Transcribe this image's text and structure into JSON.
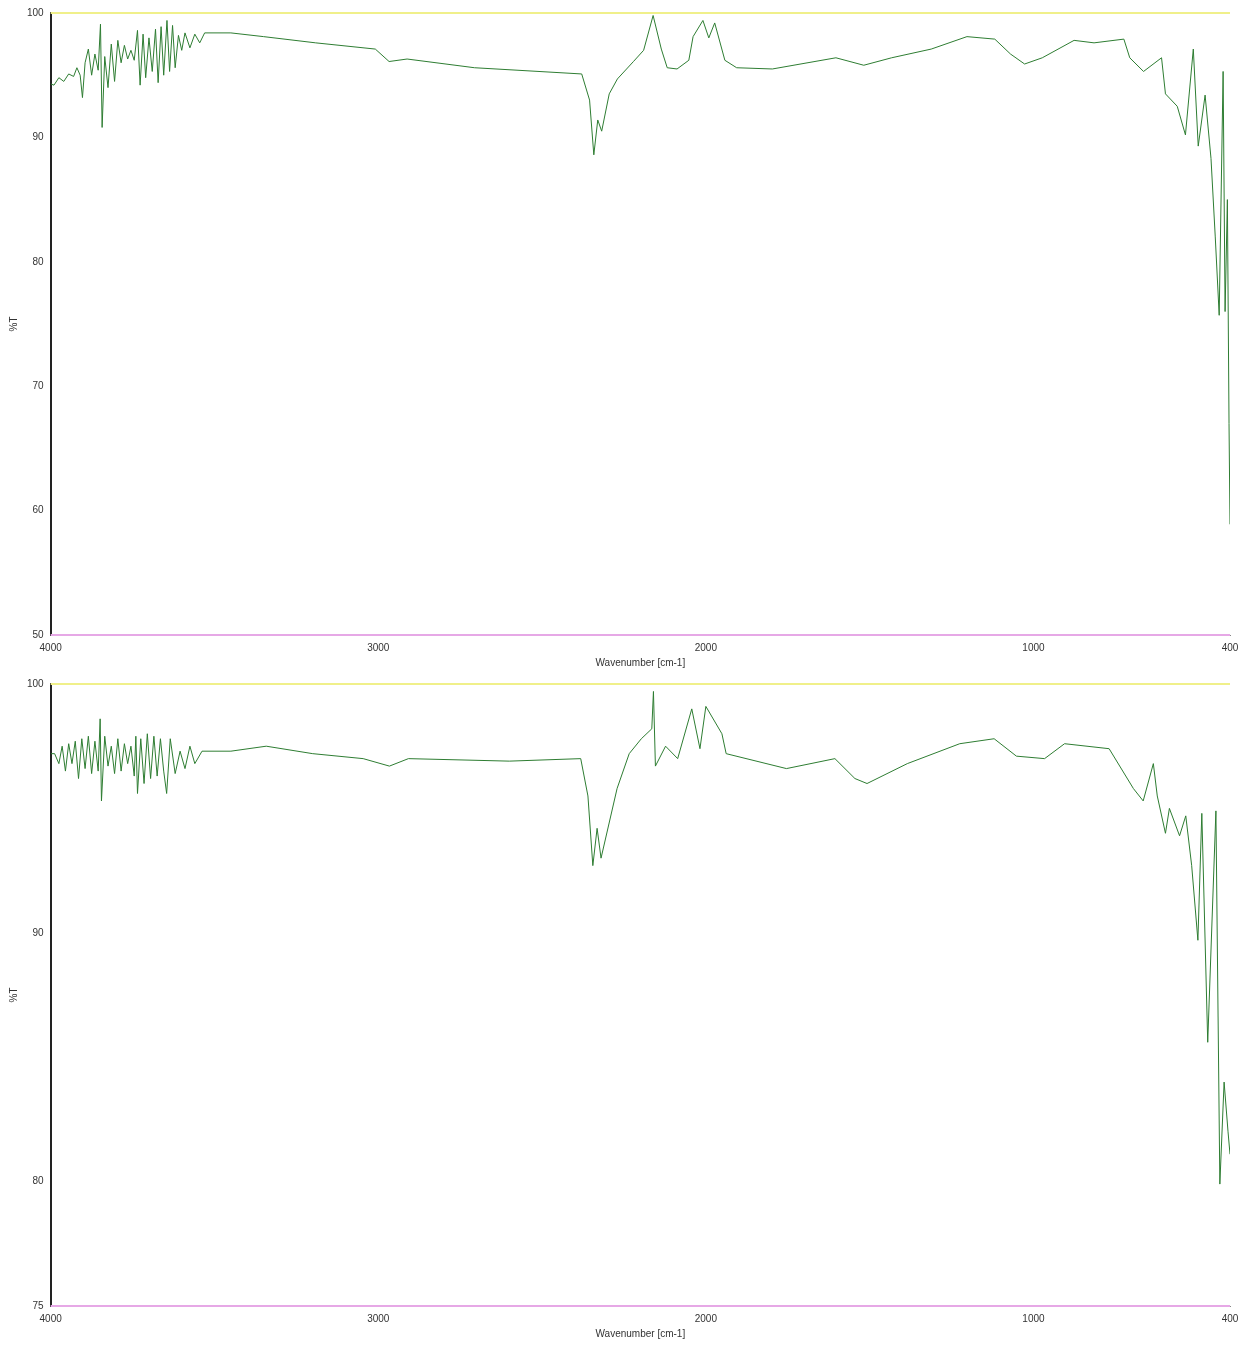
{
  "chart_data": [
    {
      "type": "line",
      "xlabel": "Wavenumber [cm-1]",
      "ylabel": "%T",
      "xlim": [
        4000,
        400
      ],
      "xticks": [
        4000,
        3000,
        2000,
        1000,
        400
      ],
      "ylim": [
        50,
        100
      ],
      "yticks": [
        50,
        60,
        70,
        80,
        90,
        100
      ],
      "grid": false,
      "legend": false,
      "marker": "none",
      "line_style": "solid",
      "ref_lines": [
        {
          "axis": "y",
          "value": 100,
          "color": "#f0f08a"
        },
        {
          "axis": "y",
          "value": 50,
          "color": "#e6a8e6"
        }
      ],
      "series": [
        {
          "color": "#2e7d32",
          "x": [
            4000,
            3990,
            3975,
            3960,
            3945,
            3930,
            3920,
            3910,
            3903,
            3895,
            3885,
            3875,
            3865,
            3855,
            3848,
            3843,
            3835,
            3825,
            3815,
            3805,
            3795,
            3785,
            3775,
            3765,
            3755,
            3745,
            3735,
            3727,
            3718,
            3710,
            3700,
            3690,
            3680,
            3672,
            3663,
            3655,
            3645,
            3637,
            3628,
            3620,
            3610,
            3600,
            3590,
            3575,
            3560,
            3545,
            3530,
            3450,
            3350,
            3191,
            3009,
            2967,
            2912,
            2706,
            2379,
            2355,
            2342,
            2330,
            2318,
            2295,
            2270,
            2221,
            2190,
            2161,
            2136,
            2118,
            2088,
            2052,
            2039,
            2009,
            1991,
            1973,
            1942,
            1906,
            1797,
            1603,
            1518,
            1433,
            1312,
            1203,
            1118,
            1070,
            1027,
            973,
            876,
            815,
            724,
            706,
            664,
            609,
            597,
            561,
            536,
            512,
            497,
            476,
            458,
            445,
            433,
            421,
            415,
            408,
            403,
            400
          ],
          "values": [
            94.3,
            94.2,
            94.8,
            94.5,
            95.1,
            94.9,
            95.6,
            95.0,
            93.2,
            96.0,
            97.1,
            95.0,
            96.7,
            95.4,
            99.1,
            90.8,
            96.5,
            94.0,
            97.5,
            94.5,
            97.8,
            96.0,
            97.4,
            96.3,
            97.0,
            96.2,
            98.6,
            94.2,
            98.3,
            94.8,
            98.0,
            95.3,
            98.7,
            94.4,
            98.9,
            95.0,
            99.4,
            95.3,
            99.0,
            95.6,
            98.2,
            97.0,
            98.4,
            97.2,
            98.3,
            97.6,
            98.4,
            98.4,
            98.1,
            97.6,
            97.1,
            96.1,
            96.3,
            95.6,
            95.1,
            93.0,
            88.6,
            91.4,
            90.5,
            93.5,
            94.7,
            96.1,
            97.0,
            99.8,
            97.1,
            95.6,
            95.5,
            96.2,
            98.1,
            99.4,
            98.0,
            99.2,
            96.2,
            95.6,
            95.5,
            96.4,
            95.8,
            96.4,
            97.1,
            98.1,
            97.9,
            96.7,
            95.9,
            96.4,
            97.8,
            97.6,
            97.9,
            96.4,
            95.3,
            96.4,
            93.5,
            92.5,
            90.2,
            97.1,
            89.3,
            93.4,
            88.3,
            82,
            75.7,
            95.3,
            76,
            85,
            67,
            58.9
          ]
        }
      ]
    },
    {
      "type": "line",
      "xlabel": "Wavenumber [cm-1]",
      "ylabel": "%T",
      "xlim": [
        4000,
        400
      ],
      "xticks": [
        4000,
        3000,
        2000,
        1000,
        400
      ],
      "ylim": [
        75,
        100
      ],
      "yticks": [
        75,
        80,
        90,
        100
      ],
      "grid": false,
      "legend": false,
      "marker": "none",
      "line_style": "solid",
      "ref_lines": [
        {
          "axis": "y",
          "value": 100,
          "color": "#f0f08a"
        },
        {
          "axis": "y",
          "value": 75,
          "color": "#e6a8e6"
        }
      ],
      "series": [
        {
          "color": "#2e7d32",
          "x": [
            4000,
            3988,
            3975,
            3965,
            3955,
            3945,
            3935,
            3925,
            3915,
            3905,
            3895,
            3885,
            3875,
            3865,
            3855,
            3849,
            3845,
            3835,
            3825,
            3815,
            3805,
            3795,
            3785,
            3775,
            3765,
            3755,
            3745,
            3740,
            3735,
            3725,
            3715,
            3705,
            3695,
            3685,
            3675,
            3665,
            3655,
            3646,
            3635,
            3620,
            3605,
            3590,
            3575,
            3560,
            3538,
            3450,
            3342,
            3200,
            3046,
            2966,
            2908,
            2600,
            2382,
            2360,
            2345,
            2332,
            2320,
            2271,
            2234,
            2197,
            2165,
            2160,
            2154,
            2123,
            2086,
            2043,
            2018,
            2000,
            1951,
            1938,
            1754,
            1606,
            1545,
            1508,
            1385,
            1225,
            1120,
            1052,
            966,
            905,
            769,
            695,
            665,
            634,
            622,
            597,
            585,
            554,
            535,
            517,
            498,
            486,
            468,
            443,
            431,
            418,
            406,
            400
          ],
          "values": [
            97.2,
            97.2,
            96.8,
            97.5,
            96.5,
            97.6,
            96.8,
            97.7,
            96.2,
            97.8,
            96.6,
            97.9,
            96.4,
            97.7,
            96.5,
            98.6,
            95.3,
            97.9,
            96.7,
            97.5,
            96.4,
            97.8,
            96.5,
            97.6,
            96.8,
            97.5,
            96.3,
            97.9,
            95.6,
            97.8,
            96.0,
            98.0,
            96.2,
            97.9,
            96.3,
            97.8,
            96.5,
            95.6,
            97.8,
            96.4,
            97.3,
            96.6,
            97.5,
            96.8,
            97.3,
            97.3,
            97.5,
            97.2,
            97.0,
            96.7,
            97.0,
            96.9,
            97.0,
            95.5,
            92.7,
            94.2,
            93.0,
            95.8,
            97.2,
            97.8,
            98.2,
            99.7,
            96.7,
            97.5,
            97.0,
            99.0,
            97.4,
            99.1,
            98.0,
            97.2,
            96.6,
            97.0,
            96.2,
            96.0,
            96.8,
            97.6,
            97.8,
            97.1,
            97.0,
            97.6,
            97.4,
            95.8,
            95.3,
            96.8,
            95.5,
            94.0,
            95.0,
            93.9,
            94.7,
            92.7,
            89.7,
            94.8,
            85.6,
            94.9,
            79.9,
            84,
            82,
            81.1
          ]
        }
      ]
    }
  ]
}
